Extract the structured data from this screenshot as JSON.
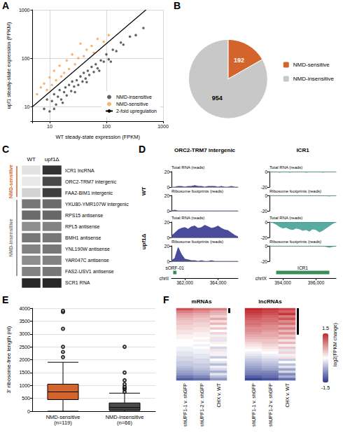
{
  "chart_data": [
    {
      "panel": "A",
      "type": "scatter",
      "x_label": "WT steady-state expression (FPKM)",
      "y_label": "upf1 steady-state expression (FPKM)",
      "log": true,
      "xlim": [
        5,
        1000
      ],
      "ylim": [
        5,
        1000
      ],
      "xticks": [
        10,
        100,
        1000
      ],
      "yticks": [
        10,
        100,
        1000
      ],
      "grid": true,
      "legend": "lower right",
      "series": [
        {
          "name": "NMD-insensitive",
          "color": "#3c3c3c",
          "marker": "circle",
          "x": [
            8,
            9,
            10,
            11,
            12,
            13,
            14,
            15,
            16,
            18,
            19,
            20,
            22,
            24,
            25,
            27,
            30,
            32,
            35,
            38,
            40,
            43,
            47,
            50,
            55,
            60,
            65,
            70,
            80,
            90,
            100,
            110,
            130,
            150,
            180,
            200,
            260,
            330,
            450,
            12,
            17,
            28,
            45,
            75,
            120
          ],
          "values": [
            9,
            14,
            8,
            13,
            18,
            11,
            16,
            22,
            14,
            20,
            25,
            17,
            28,
            21,
            33,
            26,
            35,
            28,
            42,
            33,
            50,
            38,
            55,
            45,
            66,
            52,
            75,
            62,
            90,
            85,
            120,
            95,
            150,
            140,
            210,
            190,
            280,
            300,
            420,
            9,
            12,
            20,
            32,
            55,
            85
          ]
        },
        {
          "name": "NMD-sensitive",
          "color": "#f5a34a",
          "marker": "circle",
          "x": [
            6,
            7,
            8,
            9,
            10,
            11,
            12,
            13,
            15,
            16,
            18,
            20,
            22,
            25,
            28,
            32,
            35,
            40,
            45,
            55,
            60,
            70,
            90,
            110
          ],
          "values": [
            18,
            25,
            30,
            22,
            40,
            28,
            55,
            35,
            70,
            42,
            50,
            90,
            60,
            120,
            75,
            100,
            200,
            110,
            150,
            180,
            130,
            250,
            220,
            300
          ]
        },
        {
          "name": "2-fold upregulation",
          "type": "line",
          "color": "#000000",
          "line_style": "solid",
          "x": [
            5,
            500
          ],
          "values": [
            10,
            1000
          ]
        }
      ]
    },
    {
      "panel": "B",
      "type": "pie",
      "categories": [
        "NMD-sensitive",
        "NMD-insensitive"
      ],
      "values": [
        192,
        954
      ],
      "colors": [
        "#d2642c",
        "#c8c8c8"
      ],
      "data_labels": true,
      "legend": "right"
    },
    {
      "panel": "C",
      "type": "blot",
      "columns": [
        "WT",
        "upf1Δ"
      ],
      "rows": [
        "ICR1 lncRNA",
        "ORC2-TRM7 intergenic",
        "FAA2-BIM1 intergenic",
        "YKU80-YMR107W intergenic",
        "RPS15 antisense",
        "RPL5 antisense",
        "BMH1 antisense",
        "YNL190W antisense",
        "YAR047C antisense",
        "FAS2-USV1 antisense",
        "SCR1 RNA"
      ],
      "values": [
        [
          0.08,
          0.85
        ],
        [
          0.05,
          0.75
        ],
        [
          0.15,
          0.8
        ],
        [
          0.55,
          0.6
        ],
        [
          0.6,
          0.62
        ],
        [
          0.45,
          0.5
        ],
        [
          0.55,
          0.55
        ],
        [
          0.5,
          0.55
        ],
        [
          0.45,
          0.5
        ],
        [
          0.5,
          0.55
        ],
        [
          0.9,
          0.9
        ]
      ],
      "intensity_range": [
        0,
        1
      ],
      "groups": [
        {
          "name": "NMD-sensitive",
          "color": "#d2642c",
          "first": "ICR1 lncRNA",
          "last": "FAA2-BIM1 intergenic"
        },
        {
          "name": "NMD-insensitive",
          "color": "#7a7a7a",
          "first": "YKU80-YMR107W intergenic",
          "last": "FAS2-USV1 antisense"
        }
      ]
    },
    {
      "panel": "D",
      "type": "area",
      "genotypes": [
        "WT",
        "upf1Δ"
      ],
      "tracks": [
        "Total RNA (reads)",
        "Ribosome footprints (reads)"
      ],
      "loci": [
        {
          "title": "ORC2-TRM7 intergenic",
          "chrom": "chrII",
          "color": "#2c2c8c",
          "xlim": [
            361200,
            365200
          ],
          "xticks": [
            {
              "value": 362000,
              "label": "362,000"
            },
            {
              "value": 364000,
              "label": "364,000"
            }
          ],
          "ylim": [
            0,
            20
          ],
          "yticks": [
            0,
            20
          ],
          "x": [
            361200,
            361400,
            361600,
            361800,
            362000,
            362200,
            362400,
            362600,
            362800,
            363000,
            363200,
            363400,
            363600,
            363800,
            364000,
            364200,
            364400,
            364600,
            364800,
            365000,
            365200
          ],
          "coverage": [
            [
              [
                0,
                0,
                1,
                1,
                0,
                1,
                1,
                2,
                1,
                1,
                0,
                1,
                1,
                1,
                0,
                1,
                0,
                0,
                1,
                0,
                0
              ],
              [
                0,
                1,
                0,
                0,
                0,
                0,
                0,
                0,
                0,
                0,
                0,
                0,
                0,
                0,
                0,
                0,
                0,
                0,
                0,
                0,
                0
              ]
            ],
            [
              [
                2,
                6,
                10,
                12,
                13,
                11,
                14,
                15,
                12,
                13,
                16,
                14,
                12,
                13,
                15,
                12,
                10,
                9,
                6,
                3,
                1
              ],
              [
                1,
                4,
                18,
                9,
                3,
                2,
                1,
                1,
                0,
                1,
                0,
                0,
                1,
                0,
                0,
                0,
                0,
                0,
                0,
                0,
                0
              ]
            ]
          ],
          "genes": [
            {
              "name": "sORF-01",
              "start": 361300,
              "end": 361500
            }
          ]
        },
        {
          "title": "ICR1",
          "chrom": "chrIX",
          "color": "#3b9c8f",
          "xlim": [
            393200,
            397200
          ],
          "xticks": [
            {
              "value": 394000,
              "label": "394,000"
            },
            {
              "value": 396000,
              "label": "396,000"
            }
          ],
          "ylim": [
            -20,
            0
          ],
          "yticks": [
            -20,
            0
          ],
          "x": [
            393200,
            393400,
            393600,
            393800,
            394000,
            394200,
            394400,
            394600,
            394800,
            395000,
            395200,
            395400,
            395600,
            395800,
            396000,
            396200,
            396400,
            396600,
            396800,
            397000,
            397200
          ],
          "coverage": [
            [
              [
                0,
                0,
                0,
                -1,
                0,
                0,
                -1,
                0,
                0,
                0,
                0,
                -1,
                0,
                0,
                0,
                0,
                -1,
                0,
                0,
                0,
                0
              ],
              [
                0,
                0,
                0,
                0,
                0,
                0,
                0,
                0,
                0,
                0,
                0,
                0,
                0,
                0,
                0,
                0,
                0,
                0,
                -1,
                0,
                0
              ]
            ],
            [
              [
                0,
                -1,
                -3,
                -6,
                -8,
                -7,
                -9,
                -10,
                -8,
                -9,
                -11,
                -10,
                -12,
                -9,
                -10,
                -13,
                -11,
                -8,
                -5,
                -2,
                0
              ],
              [
                0,
                0,
                0,
                0,
                0,
                0,
                0,
                0,
                0,
                0,
                0,
                0,
                0,
                0,
                0,
                0,
                0,
                -1,
                -2,
                -1,
                0
              ]
            ]
          ],
          "genes": [
            {
              "name": "ICR1",
              "start": 393600,
              "end": 396800
            }
          ]
        }
      ]
    },
    {
      "panel": "E",
      "type": "boxplot",
      "y_label": "3' ribosome-free length (nt)",
      "categories": [
        "NMD-sensitive (n=119)",
        "NMD-insensitive (n=66)"
      ],
      "colors": [
        "#d2642c",
        "#4a4a4a"
      ],
      "boxes": [
        [
          0,
          450,
          750,
          1050,
          1900
        ],
        [
          0,
          40,
          140,
          320,
          700
        ]
      ],
      "outliers": [
        [
          2100,
          2300,
          2500,
          3200,
          3850,
          3900
        ],
        [
          750,
          850,
          900,
          950,
          1050,
          1200,
          1500,
          2500
        ]
      ],
      "ylim": [
        0,
        4000
      ],
      "yticks": [
        0,
        500,
        1000,
        1500,
        2000,
        2500,
        3000,
        3500,
        4000
      ],
      "grid": true
    },
    {
      "panel": "F",
      "type": "heatmap",
      "tick_labels": "x",
      "columns": [
        "shUPF1-1 v. shGFP",
        "shUPF1-2 v. shGFP",
        "CHX v. WT"
      ],
      "panels": [
        {
          "title": "mRNAs",
          "marked_rows": 2,
          "cells": [
            [
              1.2,
              1.0,
              0.9
            ],
            [
              0.9,
              0.8,
              0.6
            ],
            [
              0.7,
              0.6,
              0.5
            ],
            [
              0.6,
              0.5,
              0.3
            ],
            [
              0.5,
              0.4,
              0.6
            ],
            [
              0.4,
              0.4,
              0.2
            ],
            [
              0.4,
              0.3,
              0.5
            ],
            [
              0.3,
              0.3,
              0.1
            ],
            [
              0.3,
              0.2,
              0.4
            ],
            [
              0.2,
              0.2,
              0.0
            ],
            [
              0.2,
              0.1,
              0.3
            ],
            [
              0.1,
              0.1,
              -0.1
            ],
            [
              0.1,
              0.0,
              0.2
            ],
            [
              0.0,
              0.1,
              -0.2
            ],
            [
              0.0,
              0.0,
              0.1
            ],
            [
              0.0,
              -0.1,
              0.0
            ],
            [
              -0.1,
              0.0,
              -0.3
            ],
            [
              -0.1,
              -0.1,
              0.2
            ],
            [
              -0.2,
              -0.1,
              -0.1
            ],
            [
              -0.2,
              -0.2,
              0.1
            ],
            [
              -0.3,
              -0.2,
              -0.4
            ],
            [
              -0.3,
              -0.3,
              0.0
            ],
            [
              -0.4,
              -0.3,
              -0.2
            ],
            [
              -0.4,
              -0.4,
              -0.5
            ],
            [
              -0.5,
              -0.4,
              -0.1
            ],
            [
              -0.6,
              -0.5,
              -0.3
            ],
            [
              -0.7,
              -0.6,
              -0.6
            ],
            [
              -0.8,
              -0.7,
              -0.2
            ],
            [
              -1.0,
              -0.9,
              -0.5
            ],
            [
              -1.2,
              -1.1,
              -0.8
            ]
          ]
        },
        {
          "title": "lncRNAs",
          "marked_rows": 11,
          "cells": [
            [
              1.5,
              1.4,
              1.3
            ],
            [
              1.4,
              1.3,
              1.1
            ],
            [
              1.3,
              1.2,
              1.4
            ],
            [
              1.2,
              1.1,
              0.9
            ],
            [
              1.1,
              1.0,
              1.2
            ],
            [
              1.0,
              1.0,
              0.8
            ],
            [
              1.0,
              0.9,
              1.0
            ],
            [
              0.9,
              0.8,
              0.6
            ],
            [
              0.8,
              0.8,
              0.9
            ],
            [
              0.8,
              0.7,
              0.5
            ],
            [
              0.7,
              0.6,
              0.8
            ],
            [
              0.6,
              0.6,
              0.4
            ],
            [
              0.5,
              0.5,
              0.6
            ],
            [
              0.4,
              0.4,
              0.2
            ],
            [
              0.3,
              0.4,
              0.5
            ],
            [
              0.2,
              0.3,
              0.1
            ],
            [
              0.1,
              0.2,
              0.4
            ],
            [
              0.0,
              0.1,
              -0.2
            ],
            [
              -0.1,
              0.0,
              0.3
            ],
            [
              -0.2,
              -0.1,
              -0.1
            ],
            [
              -0.3,
              -0.2,
              0.2
            ],
            [
              -0.4,
              -0.3,
              -0.4
            ],
            [
              -0.5,
              -0.4,
              0.0
            ],
            [
              -0.6,
              -0.5,
              -0.5
            ],
            [
              -0.7,
              -0.6,
              -0.2
            ],
            [
              -0.8,
              -0.7,
              -0.7
            ],
            [
              -0.9,
              -0.9,
              -0.3
            ],
            [
              -1.0,
              -1.0,
              -0.9
            ],
            [
              -1.2,
              -1.1,
              -0.6
            ],
            [
              -1.4,
              -1.3,
              -1.1
            ]
          ]
        }
      ],
      "colorbar": {
        "label": "log2(FPKM change)",
        "range": [
          -1.5,
          1.5
        ],
        "ticks": [
          -1.5,
          1.5
        ],
        "colors": [
          "#2b3990",
          "#ffffff",
          "#c1272d"
        ]
      }
    }
  ]
}
